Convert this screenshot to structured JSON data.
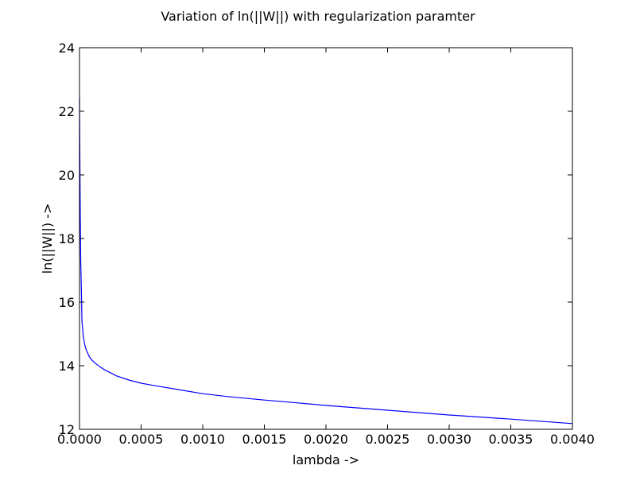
{
  "chart_data": {
    "type": "line",
    "title": "Variation of ln(||W||) with regularization paramter",
    "xlabel": "lambda ->",
    "ylabel": "ln(||W||) ->",
    "xlim": [
      0.0,
      0.004
    ],
    "ylim": [
      12,
      24
    ],
    "grid": false,
    "line_color": "#0000ff",
    "x_ticks": [
      "0.0000",
      "0.0005",
      "0.0010",
      "0.0015",
      "0.0020",
      "0.0025",
      "0.0030",
      "0.0035",
      "0.0040"
    ],
    "y_ticks": [
      "12",
      "14",
      "16",
      "18",
      "20",
      "22",
      "24"
    ],
    "series": [
      {
        "x": [
          0.0,
          3e-06,
          6e-06,
          1e-05,
          1.5e-05,
          2e-05,
          3e-05,
          4e-05,
          5e-05,
          6e-05,
          8e-05,
          0.0001,
          0.00013,
          0.00016,
          0.0002,
          0.00025,
          0.0003,
          0.0004,
          0.0005,
          0.0006,
          0.0008,
          0.001,
          0.0012,
          0.0015,
          0.0018,
          0.002,
          0.0025,
          0.003,
          0.0035,
          0.004
        ],
        "y": [
          22.4,
          20.5,
          18.8,
          17.3,
          16.4,
          15.4,
          14.95,
          14.7,
          14.55,
          14.45,
          14.28,
          14.18,
          14.07,
          13.98,
          13.88,
          13.78,
          13.68,
          13.55,
          13.45,
          13.38,
          13.25,
          13.12,
          13.03,
          12.92,
          12.82,
          12.75,
          12.6,
          12.45,
          12.32,
          12.18
        ]
      }
    ]
  }
}
